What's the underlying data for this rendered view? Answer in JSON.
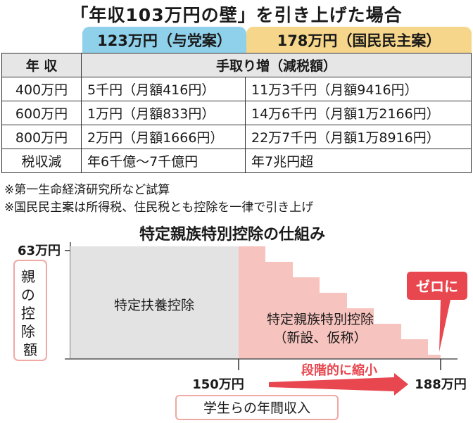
{
  "title": "「年収103万円の壁」を引き上げた場合",
  "plans": {
    "a": "123万円（与党案）",
    "b": "178万円（国民民主案）"
  },
  "table": {
    "header": {
      "year": "年 収",
      "benefit": "手取り増（減税額）"
    },
    "rows": [
      {
        "year": "400万円",
        "a": "5千円（月額416円）",
        "b": "11万3千円（月額9416円）"
      },
      {
        "year": "600万円",
        "a": "1万円（月額833円）",
        "b": "14万6千円（月額1万2166円）"
      },
      {
        "year": "800万円",
        "a": "2万円（月額1666円）",
        "b": "22万7千円（月額1万8916円）"
      },
      {
        "year": "税収減",
        "a": "年6千億〜7千億円",
        "b": "年7兆円超"
      }
    ]
  },
  "notes": [
    "※第一生命経済研究所など試算",
    "※国民民主案は所得税、住民税とも控除を一律で引き上げ"
  ],
  "diagram": {
    "title": "特定親族特別控除の仕組み",
    "y_label": "親の控除額",
    "y_value": "63万円",
    "box_gray": "特定扶養控除",
    "box_pink_1": "特定親族特別控除",
    "box_pink_2": "（新設、仮称）",
    "callout": "ゼロに",
    "x_start": "150万円",
    "x_end": "188万円",
    "arrow_label": "段階的に縮小",
    "x_caption": "学生らの年間収入",
    "colors": {
      "gray": "#e3e3e3",
      "pink": "#f7c3be",
      "red": "#e8474f",
      "outline": "#f0a8a3"
    }
  }
}
